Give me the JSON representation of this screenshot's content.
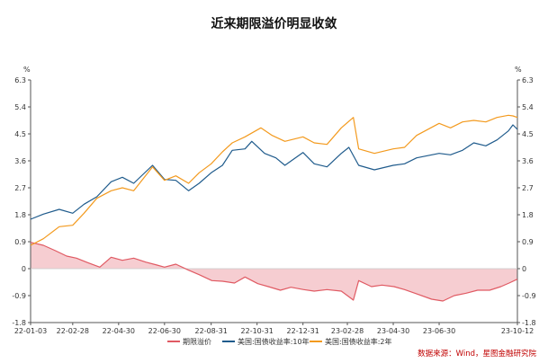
{
  "chart_data": {
    "type": "line",
    "title": "近来期限溢价明显收敛",
    "unit_left": "%",
    "unit_right": "%",
    "ylim": [
      -1.8,
      6.3
    ],
    "yticks": [
      "6.3",
      "5.4",
      "4.5",
      "3.6",
      "2.7",
      "1.8",
      "0.9",
      "0",
      "-0.9",
      "-1.8"
    ],
    "ytick_values": [
      6.3,
      5.4,
      4.5,
      3.6,
      2.7,
      1.8,
      0.9,
      0,
      -0.9,
      -1.8
    ],
    "x_range": [
      "2022-01-03",
      "2023-10-12"
    ],
    "xticks": [
      "22-01-03",
      "22-02-28",
      "22-04-30",
      "22-06-30",
      "22-08-31",
      "22-10-31",
      "22-12-31",
      "23-02-28",
      "23-04-30",
      "23-06-30",
      "23-10-12"
    ],
    "xtick_dates": [
      "2022-01-03",
      "2022-02-28",
      "2022-04-30",
      "2022-06-30",
      "2022-08-31",
      "2022-10-31",
      "2022-12-31",
      "2023-02-28",
      "2023-04-30",
      "2023-06-30",
      "2023-10-12"
    ],
    "series": [
      {
        "name": "期限溢价",
        "color": "#e05a63",
        "fill": "#f6cdd1",
        "points": [
          [
            "2022-01-03",
            0.88
          ],
          [
            "2022-01-20",
            0.78
          ],
          [
            "2022-02-05",
            0.6
          ],
          [
            "2022-02-20",
            0.42
          ],
          [
            "2022-03-05",
            0.35
          ],
          [
            "2022-03-20",
            0.2
          ],
          [
            "2022-04-05",
            0.05
          ],
          [
            "2022-04-20",
            0.38
          ],
          [
            "2022-05-05",
            0.28
          ],
          [
            "2022-05-20",
            0.35
          ],
          [
            "2022-06-05",
            0.22
          ],
          [
            "2022-06-20",
            0.12
          ],
          [
            "2022-06-30",
            0.05
          ],
          [
            "2022-07-15",
            0.15
          ],
          [
            "2022-08-01",
            -0.05
          ],
          [
            "2022-08-15",
            -0.2
          ],
          [
            "2022-09-01",
            -0.4
          ],
          [
            "2022-09-15",
            -0.42
          ],
          [
            "2022-10-01",
            -0.48
          ],
          [
            "2022-10-15",
            -0.28
          ],
          [
            "2022-11-01",
            -0.5
          ],
          [
            "2022-11-15",
            -0.6
          ],
          [
            "2022-12-01",
            -0.72
          ],
          [
            "2022-12-15",
            -0.62
          ],
          [
            "2023-01-01",
            -0.7
          ],
          [
            "2023-01-15",
            -0.75
          ],
          [
            "2023-02-01",
            -0.7
          ],
          [
            "2023-02-20",
            -0.75
          ],
          [
            "2023-03-08",
            -1.05
          ],
          [
            "2023-03-15",
            -0.4
          ],
          [
            "2023-04-01",
            -0.6
          ],
          [
            "2023-04-15",
            -0.55
          ],
          [
            "2023-05-01",
            -0.6
          ],
          [
            "2023-05-15",
            -0.7
          ],
          [
            "2023-06-01",
            -0.85
          ],
          [
            "2023-06-20",
            -1.02
          ],
          [
            "2023-07-05",
            -1.08
          ],
          [
            "2023-07-20",
            -0.9
          ],
          [
            "2023-08-05",
            -0.82
          ],
          [
            "2023-08-20",
            -0.72
          ],
          [
            "2023-09-05",
            -0.72
          ],
          [
            "2023-09-20",
            -0.6
          ],
          [
            "2023-10-01",
            -0.48
          ],
          [
            "2023-10-12",
            -0.35
          ]
        ]
      },
      {
        "name": "美国:国债收益率:10年",
        "color": "#1f5b8c",
        "points": [
          [
            "2022-01-03",
            1.65
          ],
          [
            "2022-01-20",
            1.82
          ],
          [
            "2022-02-10",
            1.98
          ],
          [
            "2022-02-28",
            1.85
          ],
          [
            "2022-03-15",
            2.15
          ],
          [
            "2022-04-01",
            2.4
          ],
          [
            "2022-04-20",
            2.9
          ],
          [
            "2022-05-05",
            3.05
          ],
          [
            "2022-05-20",
            2.85
          ],
          [
            "2022-06-14",
            3.45
          ],
          [
            "2022-06-30",
            2.98
          ],
          [
            "2022-07-15",
            2.95
          ],
          [
            "2022-08-01",
            2.6
          ],
          [
            "2022-08-15",
            2.85
          ],
          [
            "2022-08-31",
            3.2
          ],
          [
            "2022-09-15",
            3.45
          ],
          [
            "2022-09-28",
            3.95
          ],
          [
            "2022-10-15",
            4.0
          ],
          [
            "2022-10-24",
            4.25
          ],
          [
            "2022-11-10",
            3.85
          ],
          [
            "2022-11-25",
            3.7
          ],
          [
            "2022-12-07",
            3.45
          ],
          [
            "2022-12-31",
            3.88
          ],
          [
            "2023-01-15",
            3.5
          ],
          [
            "2023-02-01",
            3.4
          ],
          [
            "2023-02-20",
            3.85
          ],
          [
            "2023-03-02",
            4.05
          ],
          [
            "2023-03-15",
            3.45
          ],
          [
            "2023-04-05",
            3.3
          ],
          [
            "2023-04-30",
            3.45
          ],
          [
            "2023-05-15",
            3.5
          ],
          [
            "2023-05-31",
            3.7
          ],
          [
            "2023-06-30",
            3.85
          ],
          [
            "2023-07-15",
            3.8
          ],
          [
            "2023-07-31",
            3.95
          ],
          [
            "2023-08-15",
            4.2
          ],
          [
            "2023-08-31",
            4.1
          ],
          [
            "2023-09-15",
            4.3
          ],
          [
            "2023-09-30",
            4.6
          ],
          [
            "2023-10-06",
            4.8
          ],
          [
            "2023-10-12",
            4.65
          ]
        ]
      },
      {
        "name": "美国:国债收益率:2年",
        "color": "#f39a1e",
        "points": [
          [
            "2022-01-03",
            0.78
          ],
          [
            "2022-01-20",
            1.0
          ],
          [
            "2022-02-10",
            1.4
          ],
          [
            "2022-02-28",
            1.45
          ],
          [
            "2022-03-15",
            1.85
          ],
          [
            "2022-04-01",
            2.35
          ],
          [
            "2022-04-20",
            2.6
          ],
          [
            "2022-05-05",
            2.7
          ],
          [
            "2022-05-20",
            2.6
          ],
          [
            "2022-06-14",
            3.4
          ],
          [
            "2022-06-30",
            2.95
          ],
          [
            "2022-07-15",
            3.1
          ],
          [
            "2022-08-01",
            2.85
          ],
          [
            "2022-08-15",
            3.2
          ],
          [
            "2022-08-31",
            3.5
          ],
          [
            "2022-09-15",
            3.9
          ],
          [
            "2022-09-28",
            4.2
          ],
          [
            "2022-10-15",
            4.4
          ],
          [
            "2022-11-05",
            4.7
          ],
          [
            "2022-11-20",
            4.45
          ],
          [
            "2022-12-07",
            4.25
          ],
          [
            "2022-12-31",
            4.4
          ],
          [
            "2023-01-15",
            4.2
          ],
          [
            "2023-02-01",
            4.15
          ],
          [
            "2023-02-20",
            4.7
          ],
          [
            "2023-03-08",
            5.05
          ],
          [
            "2023-03-15",
            4.0
          ],
          [
            "2023-04-05",
            3.85
          ],
          [
            "2023-04-30",
            4.0
          ],
          [
            "2023-05-15",
            4.05
          ],
          [
            "2023-05-31",
            4.45
          ],
          [
            "2023-06-30",
            4.85
          ],
          [
            "2023-07-15",
            4.7
          ],
          [
            "2023-07-31",
            4.9
          ],
          [
            "2023-08-15",
            4.95
          ],
          [
            "2023-08-31",
            4.9
          ],
          [
            "2023-09-15",
            5.05
          ],
          [
            "2023-09-30",
            5.12
          ],
          [
            "2023-10-06",
            5.1
          ],
          [
            "2023-10-12",
            5.05
          ]
        ]
      }
    ],
    "legend": [
      {
        "label": "期限溢价",
        "color": "#e05a63"
      },
      {
        "label": "美国:国债收益率:10年",
        "color": "#1f5b8c"
      },
      {
        "label": "美国:国债收益率:2年",
        "color": "#f39a1e"
      }
    ],
    "legend_position": "bottom",
    "source": "数据来源：Wind，星图金融研究院",
    "grid": false
  }
}
